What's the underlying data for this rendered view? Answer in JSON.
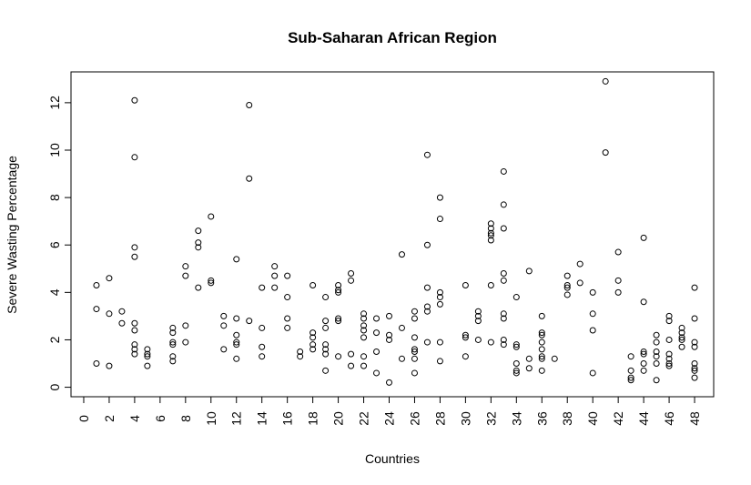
{
  "chart_data": {
    "type": "scatter",
    "title": "Sub-Saharan African Region",
    "xlabel": "Countries",
    "ylabel": "Severe Wasting Percentage",
    "xlim": [
      -1,
      49.5
    ],
    "ylim": [
      -0.4,
      13.3
    ],
    "x_ticks": [
      "0",
      "2",
      "4",
      "6",
      "8",
      "10",
      "12",
      "14",
      "16",
      "18",
      "20",
      "22",
      "24",
      "26",
      "28",
      "30",
      "32",
      "34",
      "36",
      "38",
      "40",
      "42",
      "44",
      "46",
      "48"
    ],
    "y_ticks": [
      "0",
      "2",
      "4",
      "6",
      "8",
      "10",
      "12"
    ],
    "grid": false,
    "points": [
      [
        1,
        4.3
      ],
      [
        1,
        3.3
      ],
      [
        1,
        1.0
      ],
      [
        2,
        4.6
      ],
      [
        2,
        3.1
      ],
      [
        2,
        0.9
      ],
      [
        3,
        3.2
      ],
      [
        3,
        2.7
      ],
      [
        4,
        12.1
      ],
      [
        4,
        9.7
      ],
      [
        4,
        5.9
      ],
      [
        4,
        5.5
      ],
      [
        4,
        2.7
      ],
      [
        4,
        2.4
      ],
      [
        4,
        1.8
      ],
      [
        4,
        1.6
      ],
      [
        4,
        1.4
      ],
      [
        5,
        1.6
      ],
      [
        5,
        1.4
      ],
      [
        5,
        1.3
      ],
      [
        5,
        0.9
      ],
      [
        7,
        2.5
      ],
      [
        7,
        2.3
      ],
      [
        7,
        1.9
      ],
      [
        7,
        1.8
      ],
      [
        7,
        1.3
      ],
      [
        7,
        1.1
      ],
      [
        8,
        5.1
      ],
      [
        8,
        4.7
      ],
      [
        8,
        2.6
      ],
      [
        8,
        1.9
      ],
      [
        9,
        6.6
      ],
      [
        9,
        6.1
      ],
      [
        9,
        5.9
      ],
      [
        9,
        4.2
      ],
      [
        10,
        7.2
      ],
      [
        10,
        4.5
      ],
      [
        10,
        4.4
      ],
      [
        11,
        3.0
      ],
      [
        11,
        2.6
      ],
      [
        11,
        1.6
      ],
      [
        12,
        5.4
      ],
      [
        12,
        2.9
      ],
      [
        12,
        2.2
      ],
      [
        12,
        1.9
      ],
      [
        12,
        1.8
      ],
      [
        12,
        1.2
      ],
      [
        13,
        11.9
      ],
      [
        13,
        8.8
      ],
      [
        13,
        2.8
      ],
      [
        14,
        4.2
      ],
      [
        14,
        2.5
      ],
      [
        14,
        1.7
      ],
      [
        14,
        1.3
      ],
      [
        15,
        5.1
      ],
      [
        15,
        4.7
      ],
      [
        15,
        4.2
      ],
      [
        16,
        4.7
      ],
      [
        16,
        3.8
      ],
      [
        16,
        2.9
      ],
      [
        16,
        2.5
      ],
      [
        17,
        1.5
      ],
      [
        17,
        1.3
      ],
      [
        18,
        4.3
      ],
      [
        18,
        2.3
      ],
      [
        18,
        2.1
      ],
      [
        18,
        1.8
      ],
      [
        18,
        1.6
      ],
      [
        19,
        3.8
      ],
      [
        19,
        2.8
      ],
      [
        19,
        2.5
      ],
      [
        19,
        1.8
      ],
      [
        19,
        1.6
      ],
      [
        19,
        1.4
      ],
      [
        19,
        0.7
      ],
      [
        20,
        4.3
      ],
      [
        20,
        4.1
      ],
      [
        20,
        4.0
      ],
      [
        20,
        2.9
      ],
      [
        20,
        2.8
      ],
      [
        20,
        1.3
      ],
      [
        21,
        4.8
      ],
      [
        21,
        4.5
      ],
      [
        21,
        1.4
      ],
      [
        21,
        0.9
      ],
      [
        22,
        3.1
      ],
      [
        22,
        2.9
      ],
      [
        22,
        2.6
      ],
      [
        22,
        2.4
      ],
      [
        22,
        2.1
      ],
      [
        22,
        1.3
      ],
      [
        22,
        0.9
      ],
      [
        23,
        2.9
      ],
      [
        23,
        2.3
      ],
      [
        23,
        1.5
      ],
      [
        23,
        0.6
      ],
      [
        24,
        3.0
      ],
      [
        24,
        2.2
      ],
      [
        24,
        2.0
      ],
      [
        24,
        0.2
      ],
      [
        25,
        5.6
      ],
      [
        25,
        2.5
      ],
      [
        25,
        1.2
      ],
      [
        26,
        3.2
      ],
      [
        26,
        2.9
      ],
      [
        26,
        2.1
      ],
      [
        26,
        1.6
      ],
      [
        26,
        1.5
      ],
      [
        26,
        1.2
      ],
      [
        26,
        0.6
      ],
      [
        27,
        9.8
      ],
      [
        27,
        6.0
      ],
      [
        27,
        4.2
      ],
      [
        27,
        3.4
      ],
      [
        27,
        3.2
      ],
      [
        27,
        1.9
      ],
      [
        28,
        8.0
      ],
      [
        28,
        7.1
      ],
      [
        28,
        4.0
      ],
      [
        28,
        3.8
      ],
      [
        28,
        3.5
      ],
      [
        28,
        1.9
      ],
      [
        28,
        1.1
      ],
      [
        30,
        4.3
      ],
      [
        30,
        2.2
      ],
      [
        30,
        2.1
      ],
      [
        30,
        1.3
      ],
      [
        31,
        3.2
      ],
      [
        31,
        3.0
      ],
      [
        31,
        2.8
      ],
      [
        31,
        2.0
      ],
      [
        32,
        6.9
      ],
      [
        32,
        6.7
      ],
      [
        32,
        6.5
      ],
      [
        32,
        6.4
      ],
      [
        32,
        6.2
      ],
      [
        32,
        4.3
      ],
      [
        32,
        1.9
      ],
      [
        33,
        9.1
      ],
      [
        33,
        7.7
      ],
      [
        33,
        6.7
      ],
      [
        33,
        4.8
      ],
      [
        33,
        4.5
      ],
      [
        33,
        3.1
      ],
      [
        33,
        2.9
      ],
      [
        33,
        2.0
      ],
      [
        33,
        1.8
      ],
      [
        34,
        3.8
      ],
      [
        34,
        1.8
      ],
      [
        34,
        1.7
      ],
      [
        34,
        1.0
      ],
      [
        34,
        0.7
      ],
      [
        34,
        0.6
      ],
      [
        35,
        4.9
      ],
      [
        35,
        1.2
      ],
      [
        35,
        0.8
      ],
      [
        36,
        3.0
      ],
      [
        36,
        2.3
      ],
      [
        36,
        2.2
      ],
      [
        36,
        1.9
      ],
      [
        36,
        1.6
      ],
      [
        36,
        1.3
      ],
      [
        36,
        1.2
      ],
      [
        36,
        0.7
      ],
      [
        37,
        1.2
      ],
      [
        38,
        4.7
      ],
      [
        38,
        4.3
      ],
      [
        38,
        4.2
      ],
      [
        38,
        3.9
      ],
      [
        39,
        5.2
      ],
      [
        39,
        4.4
      ],
      [
        40,
        4.0
      ],
      [
        40,
        3.1
      ],
      [
        40,
        2.4
      ],
      [
        40,
        0.6
      ],
      [
        41,
        12.9
      ],
      [
        41,
        9.9
      ],
      [
        42,
        5.7
      ],
      [
        42,
        4.5
      ],
      [
        42,
        4.0
      ],
      [
        43,
        1.3
      ],
      [
        43,
        0.7
      ],
      [
        43,
        0.4
      ],
      [
        43,
        0.3
      ],
      [
        44,
        6.3
      ],
      [
        44,
        3.6
      ],
      [
        44,
        1.5
      ],
      [
        44,
        1.4
      ],
      [
        44,
        1.0
      ],
      [
        44,
        0.7
      ],
      [
        45,
        2.2
      ],
      [
        45,
        1.9
      ],
      [
        45,
        1.5
      ],
      [
        45,
        1.3
      ],
      [
        45,
        1.0
      ],
      [
        45,
        0.3
      ],
      [
        46,
        3.0
      ],
      [
        46,
        2.8
      ],
      [
        46,
        2.0
      ],
      [
        46,
        1.4
      ],
      [
        46,
        1.2
      ],
      [
        46,
        1.0
      ],
      [
        46,
        0.9
      ],
      [
        47,
        2.5
      ],
      [
        47,
        2.3
      ],
      [
        47,
        2.1
      ],
      [
        47,
        2.0
      ],
      [
        47,
        1.7
      ],
      [
        48,
        4.2
      ],
      [
        48,
        2.9
      ],
      [
        48,
        1.9
      ],
      [
        48,
        1.7
      ],
      [
        48,
        1.0
      ],
      [
        48,
        0.8
      ],
      [
        48,
        0.7
      ],
      [
        48,
        0.4
      ]
    ]
  }
}
